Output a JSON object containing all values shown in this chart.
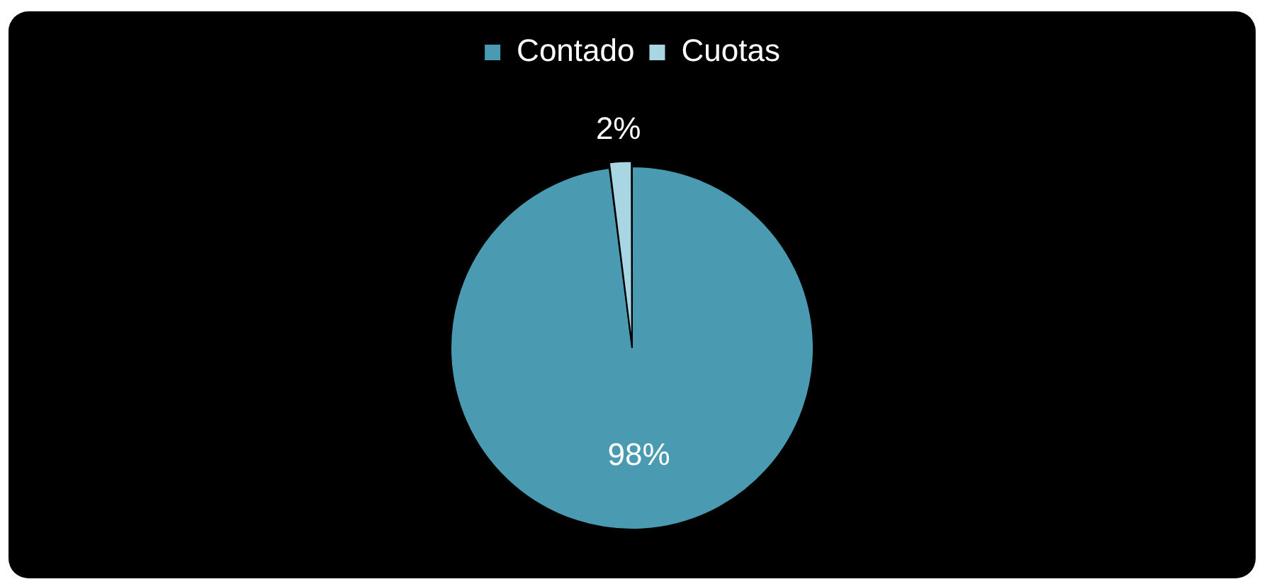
{
  "chart_data": {
    "type": "pie",
    "categories": [
      "Contado",
      "Cuotas"
    ],
    "values": [
      98,
      2
    ],
    "colors": [
      "#4a9bb1",
      "#a9d6e3"
    ],
    "value_labels": [
      "98%",
      "2%"
    ],
    "legend": "top"
  }
}
